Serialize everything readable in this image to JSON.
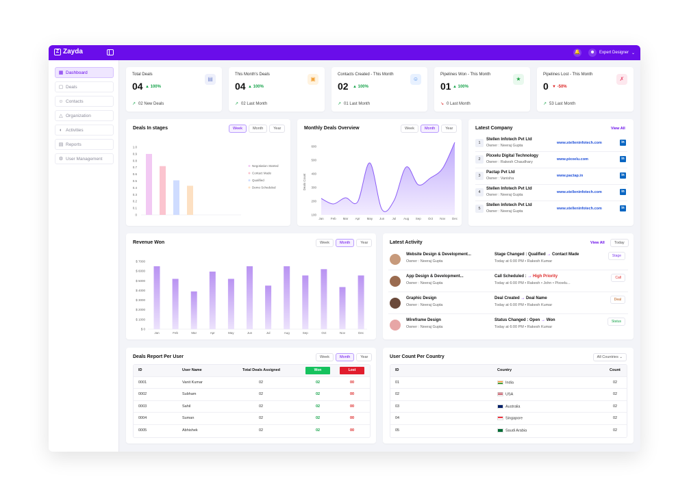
{
  "app": {
    "name": "Zayda",
    "user": "Expert Designer"
  },
  "sidebar": {
    "items": [
      {
        "label": "Dashboard",
        "icon": "grid-icon",
        "active": true
      },
      {
        "label": "Deals",
        "icon": "deals-icon"
      },
      {
        "label": "Contacts",
        "icon": "person-icon"
      },
      {
        "label": "Organization",
        "icon": "org-icon"
      },
      {
        "label": "Activities",
        "icon": "activity-icon"
      },
      {
        "label": "Reports",
        "icon": "report-icon"
      },
      {
        "label": "User Management",
        "icon": "gear-icon"
      }
    ]
  },
  "stats": [
    {
      "title": "Total Deals",
      "value": "04",
      "pct": "100%",
      "dir": "up",
      "foot": "02 New Deals",
      "icon": "chart-icon",
      "color": "#7a8bd0"
    },
    {
      "title": "This Month's Deals",
      "value": "04",
      "pct": "100%",
      "dir": "up",
      "foot": "02 Last Month",
      "icon": "calendar-icon",
      "color": "#f2a33a"
    },
    {
      "title": "Contacts Created - This Month",
      "value": "02",
      "pct": "100%",
      "dir": "up",
      "foot": "01 Last Month",
      "icon": "user-icon",
      "color": "#4a8ee8"
    },
    {
      "title": "Pipelines Won - This Month",
      "value": "01",
      "pct": "100%",
      "dir": "up",
      "foot": "0 Last Month",
      "icon": "trophy-icon",
      "color": "#22a447"
    },
    {
      "title": "Pipelines Lost - This Month",
      "value": "0",
      "pct": "-50%",
      "dir": "down",
      "foot": "53 Last Month",
      "icon": "lost-icon",
      "color": "#e94a6b"
    }
  ],
  "periods": {
    "week": "Week",
    "month": "Month",
    "year": "Year"
  },
  "stages": {
    "title": "Deals In stages",
    "chart_data": {
      "type": "bar",
      "categories": [
        "Negotiation Started",
        "Contact Made",
        "Qualified",
        "Demo Scheduled"
      ],
      "values": [
        0.9,
        0.72,
        0.51,
        0.43
      ],
      "ylim": [
        0,
        1.0
      ],
      "yticks": [
        "1.0",
        "0.9",
        "0.8",
        "0.7",
        "0.6",
        "0.5",
        "0.4",
        "0.3",
        "0.2",
        "0.1",
        "0"
      ],
      "colors": [
        "#f2c9f3",
        "#fbc4cf",
        "#cfdcff",
        "#fde0c2"
      ],
      "legend": "right"
    }
  },
  "monthly": {
    "title": "Monthly Deals Overview",
    "chart_data": {
      "type": "area",
      "x": [
        "Jan",
        "Feb",
        "Mar",
        "Apr",
        "May",
        "Jun",
        "Jul",
        "Aug",
        "Sep",
        "Oct",
        "Nov",
        "Dec"
      ],
      "values": [
        220,
        180,
        225,
        195,
        480,
        140,
        205,
        450,
        320,
        370,
        440,
        630
      ],
      "ylabel": "Deals Count",
      "ylim": [
        100,
        600
      ],
      "yticks": [
        "600",
        "500",
        "400",
        "300",
        "200",
        "100"
      ],
      "color": "#8b5cf6"
    }
  },
  "company": {
    "title": "Latest Company",
    "view_all": "View All",
    "rows": [
      {
        "n": "1",
        "name": "Stellen Infotech Pvt Ltd",
        "owner": "Owner : Neeraj Gupta",
        "url": "www.stelleninfotech.com"
      },
      {
        "n": "2",
        "name": "Pixxelu Digital Technology",
        "owner": "Owner : Rakesh Chaudhary",
        "url": "www.pixxelu.com"
      },
      {
        "n": "3",
        "name": "Pactap Pvt Ltd",
        "owner": "Owner : Vanisha",
        "url": "www.pactap.in"
      },
      {
        "n": "4",
        "name": "Stellen Infotech Pvt Ltd",
        "owner": "Owner : Neeraj Gupta",
        "url": "www.stelleninfotech.com"
      },
      {
        "n": "5",
        "name": "Stellen Infotech Pvt Ltd",
        "owner": "Owner : Neeraj Gupta",
        "url": "www.stelleninfotech.com"
      }
    ]
  },
  "revenue": {
    "title": "Revenue Won",
    "chart_data": {
      "type": "bar",
      "categories": [
        "Jan",
        "Feb",
        "Mar",
        "Apr",
        "May",
        "Jun",
        "Jul",
        "Aug",
        "Sep",
        "Oct",
        "Nov",
        "Dec"
      ],
      "values": [
        6500,
        5200,
        3900,
        5950,
        5200,
        6500,
        4500,
        6500,
        5550,
        6200,
        4350,
        5550
      ],
      "ylim": [
        0,
        7000
      ],
      "yticks": [
        "$ 7000",
        "$ 6000",
        "$ 5000",
        "$ 4000",
        "$ 3000",
        "$ 2000",
        "$ 1000",
        "$ 0"
      ],
      "color": "#b99af0"
    }
  },
  "activity": {
    "title": "Latest Activity",
    "view_all": "View All",
    "today": "Today",
    "rows": [
      {
        "title": "Website Design & Development...",
        "owner": "Owner : Neeraj Gupta",
        "status_a": "Stage Changed : Qualified",
        "arrow": "→",
        "status_b": "Contact Made",
        "detail": "Today at 6:00 PM  •  Rakesh Kumar",
        "badge": "Stage",
        "badge_color": "#7c3aed",
        "avatar": "#c79a7b"
      },
      {
        "title": "App Design & Development...",
        "owner": "Owner : Neeraj Gupta",
        "status_a": "Call Scheduled :",
        "arrow": "→",
        "status_b": "High Priority",
        "detail": "Today at 6:00 PM  •  Rakesh  •  John  •  Pixxelu...",
        "badge": "Call",
        "badge_color": "#dc2626",
        "avatar": "#9a6b4f"
      },
      {
        "title": "Graphic Design",
        "owner": "Owner : Neeraj Gupta",
        "status_a": "Deal Created",
        "arrow": "→",
        "status_b": "Deal Name",
        "detail": "Today at 6:00 PM  •  Rakesh Kumar",
        "badge": "Deal",
        "badge_color": "#b45309",
        "avatar": "#6b4a3a"
      },
      {
        "title": "Wireframe Design",
        "owner": "Owner : Neeraj Gupta",
        "status_a": "Status Changed : Open",
        "arrow": "→",
        "status_b": "Won",
        "detail": "Today at 6:00 PM  •  Rakesh Kumar",
        "badge": "Status",
        "badge_color": "#16a34a",
        "avatar": "#e7a6a6"
      }
    ]
  },
  "report": {
    "title": "Deals Report Per User",
    "headers": {
      "id": "ID",
      "name": "User Name",
      "total": "Total Deals Assigned",
      "won": "Won",
      "lost": "Lost"
    },
    "rows": [
      {
        "id": "0001",
        "name": "Vanit Kumar",
        "total": "02",
        "won": "02",
        "lost": "00"
      },
      {
        "id": "0002",
        "name": "Subham",
        "total": "02",
        "won": "02",
        "lost": "00"
      },
      {
        "id": "0003",
        "name": "Sahil",
        "total": "02",
        "won": "02",
        "lost": "00"
      },
      {
        "id": "0004",
        "name": "Suman",
        "total": "02",
        "won": "02",
        "lost": "00"
      },
      {
        "id": "0005",
        "name": "Abhishek",
        "total": "02",
        "won": "02",
        "lost": "00"
      }
    ]
  },
  "country": {
    "title": "User Count Per Country",
    "dropdown": "All Countries",
    "headers": {
      "id": "ID",
      "country": "Country",
      "count": "Count"
    },
    "rows": [
      {
        "id": "01",
        "country": "India",
        "count": "02",
        "flag": "india"
      },
      {
        "id": "02",
        "country": "USA",
        "count": "02",
        "flag": "usa"
      },
      {
        "id": "03",
        "country": "Australia",
        "count": "02",
        "flag": "australia"
      },
      {
        "id": "04",
        "country": "Singapore",
        "count": "02",
        "flag": "singapore"
      },
      {
        "id": "05",
        "country": "Saudi Arabia",
        "count": "02",
        "flag": "saudi"
      }
    ]
  }
}
